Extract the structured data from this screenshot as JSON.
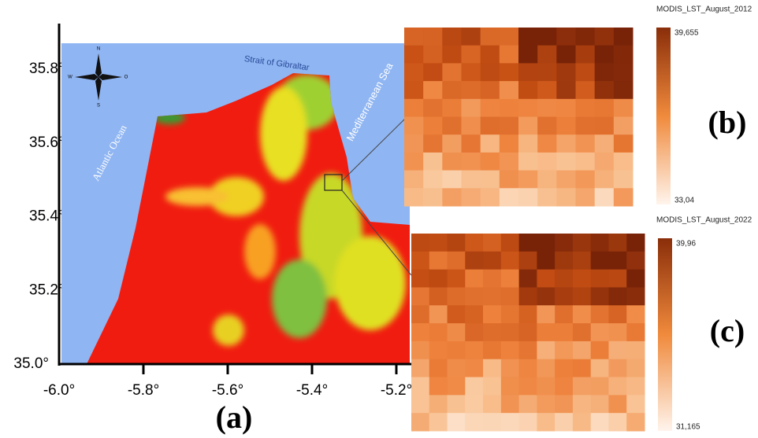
{
  "map": {
    "panel_label": "(a)",
    "labels": {
      "strait": "Strait of Gibraltar",
      "sea": "Mediterranean Sea",
      "ocean": "Atlantic Ocean"
    },
    "compass": {
      "north": "N",
      "south": "S",
      "east": "O",
      "west": "W"
    },
    "x_ticks": [
      {
        "value": -6.0,
        "label": "-6.0°"
      },
      {
        "value": -5.8,
        "label": "-5.8°"
      },
      {
        "value": -5.6,
        "label": "-5.6°"
      },
      {
        "value": -5.4,
        "label": "-5.4°"
      },
      {
        "value": -5.2,
        "label": "-5.2°"
      }
    ],
    "y_ticks": [
      {
        "value": 35.0,
        "label": "35.0°"
      },
      {
        "value": 35.2,
        "label": "35.2°"
      },
      {
        "value": 35.4,
        "label": "35.4°"
      },
      {
        "value": 35.6,
        "label": "35.6°"
      },
      {
        "value": 35.8,
        "label": "35.8°"
      }
    ]
  },
  "panel_b": {
    "panel_label": "(b)",
    "legend_title": "MODIS_LST_August_2012",
    "legend_max": "39,655",
    "legend_min": "33,04"
  },
  "panel_c": {
    "panel_label": "(c)",
    "legend_title": "MODIS_LST_August_2022",
    "legend_max": "39,96",
    "legend_min": "31,165"
  }
}
